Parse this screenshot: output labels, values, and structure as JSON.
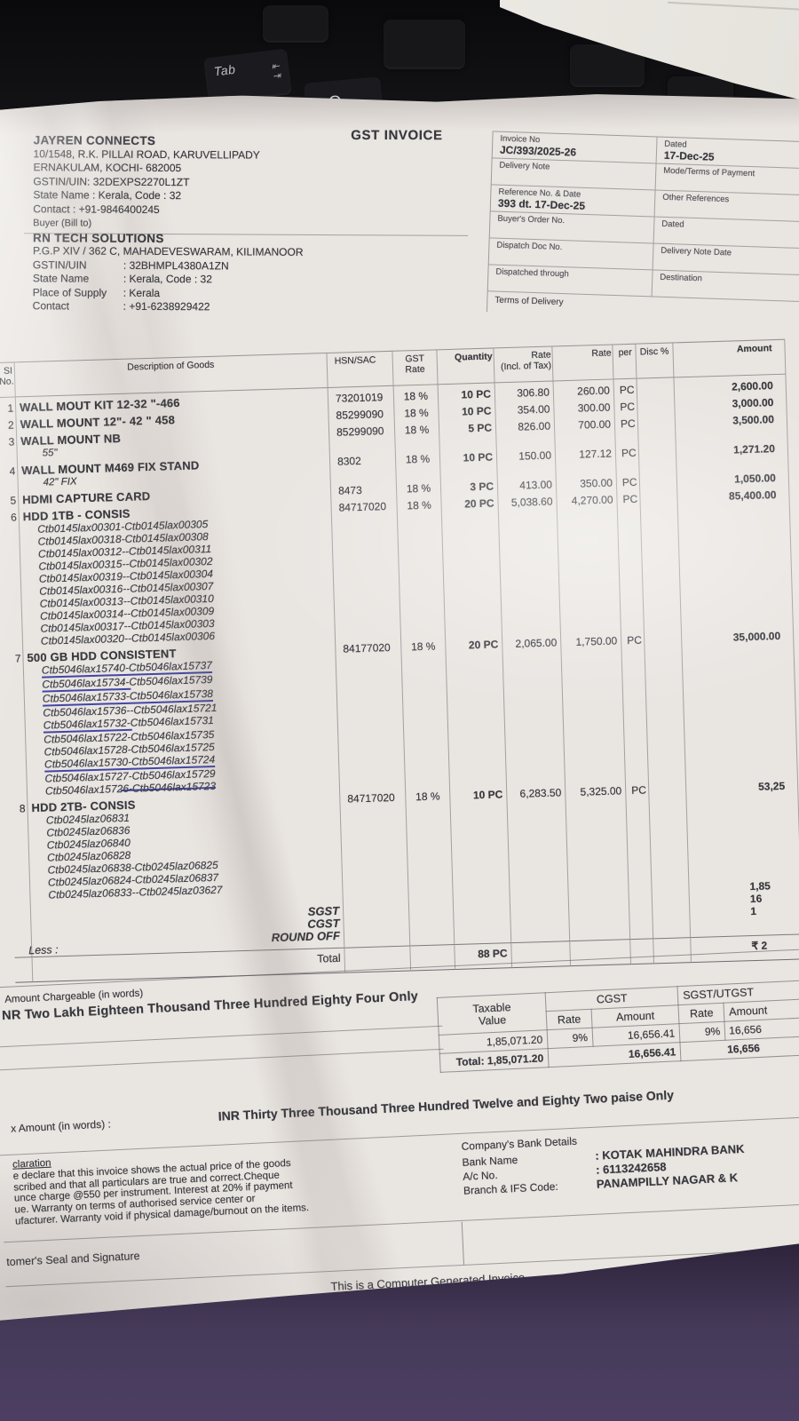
{
  "background": {
    "keys": [
      "Tab",
      "Q"
    ],
    "tab_glyph": "⇤\n⇥"
  },
  "invoice": {
    "title": "GST INVOICE",
    "seller": {
      "name": "JAYREN CONNECTS",
      "lines": [
        "10/1548, R.K. PILLAI ROAD, KARUVELLIPADY",
        "ERNAKULAM, KOCHI- 682005",
        "GSTIN/UIN: 32DEXPS2270L1ZT",
        "State Name : Kerala, Code : 32",
        "Contact : +91-9846400245"
      ],
      "buyer_heading": "Buyer (Bill to)"
    },
    "buyer": {
      "name": "RN TECH SOLUTIONS",
      "address": "P.G.P XIV / 362 C, MAHADEVESWARAM, KILIMANOOR",
      "fields": [
        {
          "label": "GSTIN/UIN",
          "value": ": 32BHMPL4380A1ZN"
        },
        {
          "label": "State Name",
          "value": ": Kerala, Code : 32"
        },
        {
          "label": "Place of Supply",
          "value": ": Kerala"
        },
        {
          "label": "Contact",
          "value": ": +91-6238929422"
        }
      ]
    },
    "meta": {
      "rows": [
        {
          "l1": "Invoice No",
          "v1": "JC/393/2025-26",
          "l2": "Dated",
          "v2": "17-Dec-25"
        },
        {
          "l1": "Delivery Note",
          "v1": "",
          "l2": "Mode/Terms of Payment",
          "v2": ""
        },
        {
          "l1": "Reference No. & Date",
          "v1": "393  dt. 17-Dec-25",
          "l2": "Other References",
          "v2": ""
        },
        {
          "l1": "Buyer's Order No.",
          "v1": "",
          "l2": "Dated",
          "v2": ""
        },
        {
          "l1": "Dispatch Doc No.",
          "v1": "",
          "l2": "Delivery Note Date",
          "v2": ""
        },
        {
          "l1": "Dispatched through",
          "v1": "",
          "l2": "Destination",
          "v2": ""
        }
      ],
      "terms_label": "Terms of Delivery"
    },
    "table": {
      "headers": {
        "sl": "SI|No.",
        "desc": "Description of Goods",
        "hsn": "HSN/SAC",
        "gst": "GST|Rate",
        "qty": "Quantity",
        "rate_incl": "Rate|(Incl. of Tax)",
        "rate": "Rate",
        "per": "per",
        "disc": "Disc %",
        "amount": "Amount"
      },
      "rows": [
        {
          "sl": "1",
          "desc": "WALL MOUT KIT 12-32 \"-466",
          "hsn": "73201019",
          "gst": "18 %",
          "qty": "10 PC",
          "rate_incl": "306.80",
          "rate": "260.00",
          "per": "PC",
          "amount": "2,600.00"
        },
        {
          "sl": "2",
          "desc": "WALL MOUNT 12\"- 42 \" 458",
          "hsn": "85299090",
          "gst": "18 %",
          "qty": "10 PC",
          "rate_incl": "354.00",
          "rate": "300.00",
          "per": "PC",
          "amount": "3,000.00"
        },
        {
          "sl": "3",
          "desc": "WALL MOUNT NB",
          "sub": "55\"",
          "hsn": "85299090",
          "gst": "18 %",
          "qty": "5 PC",
          "rate_incl": "826.00",
          "rate": "700.00",
          "per": "PC",
          "amount": "3,500.00"
        },
        {
          "sl": "4",
          "desc": "WALL MOUNT M469 FIX STAND",
          "sub": "42\" FIX",
          "hsn": "8302",
          "gst": "18 %",
          "qty": "10 PC",
          "rate_incl": "150.00",
          "rate": "127.12",
          "per": "PC",
          "amount": "1,271.20"
        },
        {
          "sl": "5",
          "desc": "HDMI CAPTURE CARD",
          "hsn": "8473",
          "gst": "18 %",
          "qty": "3 PC",
          "rate_incl": "413.00",
          "rate": "350.00",
          "per": "PC",
          "amount": "1,050.00"
        },
        {
          "sl": "6",
          "desc": "HDD 1TB - CONSIS",
          "hsn": "84717020",
          "gst": "18 %",
          "qty": "20 PC",
          "rate_incl": "5,038.60",
          "rate": "4,270.00",
          "per": "PC",
          "amount": "85,400.00",
          "serials": [
            "Ctb0145lax00301-Ctb0145lax00305",
            "Ctb0145lax00318-Ctb0145lax00308",
            "Ctb0145lax00312--Ctb0145lax00311",
            "Ctb0145lax00315--Ctb0145lax00302",
            "Ctb0145lax00319--Ctb0145lax00304",
            "Ctb0145lax00316--Ctb0145lax00307",
            "Ctb0145lax00313--Ctb0145lax00310",
            "Ctb0145lax00314--Ctb0145lax00309",
            "Ctb0145lax00317--Ctb0145lax00303",
            "Ctb0145lax00320--Ctb0145lax00306"
          ]
        },
        {
          "sl": "7",
          "desc": "500 GB HDD CONSISTENT",
          "hsn": "84177020",
          "gst": "18 %",
          "qty": "20 PC",
          "rate_incl": "2,065.00",
          "rate": "1,750.00",
          "per": "PC",
          "amount": "35,000.00",
          "serials": [
            {
              "t": "Ctb5046lax15740-Ctb5046lax15737",
              "pen": "u-full"
            },
            {
              "t": "Ctb5046lax15734-Ctb5046lax15739",
              "pen": "u-first"
            },
            {
              "t": "Ctb5046lax15733-Ctb5046lax15738",
              "pen": "u-full"
            },
            {
              "t": "Ctb5046lax15736--Ctb5046lax15721",
              "pen": ""
            },
            {
              "t": "Ctb5046lax15732-Ctb5046lax15731",
              "pen": "u-first"
            },
            {
              "t": "Ctb5046lax15722-Ctb5046lax15735",
              "pen": ""
            },
            {
              "t": "Ctb5046lax15728-Ctb5046lax15725",
              "pen": ""
            },
            {
              "t": "Ctb5046lax15730-Ctb5046lax15724",
              "pen": "u-full"
            },
            {
              "t": "Ctb5046lax15727-Ctb5046lax15729",
              "pen": ""
            },
            {
              "t": "Ctb5046lax15726-Ctb5046lax15723",
              "pen": "strike2"
            }
          ]
        },
        {
          "sl": "8",
          "desc": "HDD 2TB- CONSIS",
          "hsn": "84717020",
          "gst": "18 %",
          "qty": "10 PC",
          "rate_incl": "6,283.50",
          "rate": "5,325.00",
          "per": "PC",
          "amount": "53,25",
          "serials": [
            "Ctb0245laz06831",
            "Ctb0245laz06836",
            "Ctb0245laz06840",
            "Ctb0245laz06828",
            "Ctb0245laz06838-Ctb0245laz06825",
            "Ctb0245laz06824-Ctb0245laz06837",
            "Ctb0245laz06833--Ctb0245laz03627"
          ]
        }
      ],
      "totals": [
        {
          "label": "",
          "amount": "1,85"
        },
        {
          "label": "SGST",
          "amount": "16"
        },
        {
          "label": "CGST",
          "amount": "1"
        },
        {
          "label": "ROUND OFF",
          "amount": "",
          "left": "Less :"
        }
      ],
      "total_row": {
        "label": "Total",
        "qty": "88 PC",
        "amount": "₹ 2"
      }
    },
    "amount_words": {
      "label": "Amount Chargeable (in words)",
      "text": "NR Two Lakh Eighteen Thousand Three Hundred Eighty Four Only"
    },
    "tax_table": {
      "col_taxable1": "Taxable",
      "col_taxable2": "Value",
      "col_cgst": "CGST",
      "col_sgst": "SGST/UTGST",
      "col_rate1": "Rate",
      "col_amount1": "Amount",
      "col_rate2": "Rate",
      "col_amount2": "Amount",
      "row": {
        "taxable": "1,85,071.20",
        "cgst_rate": "9%",
        "cgst_amount": "16,656.41",
        "sgst_rate": "9%",
        "sgst_amount": "16,656"
      },
      "total": {
        "label": "Total:",
        "taxable": "1,85,071.20",
        "cgst_amount": "16,656.41",
        "sgst_amount": "16,656"
      }
    },
    "tax_words": {
      "label": "x Amount (in words)  :",
      "text": "INR Thirty Three Thousand Three Hundred Twelve and Eighty Two paise Only"
    },
    "declaration": {
      "lines": [
        "claration",
        "e declare that this invoice shows the actual price of the goods",
        "scribed and that all particulars are true and correct.Cheque",
        "unce charge @550 per instrument. Interest at 20% if payment",
        "ue. Warranty on terms of authorised service center or",
        "ufacturer. Warranty void if physical damage/burnout on the items."
      ]
    },
    "bank": {
      "heading": "Company's Bank Details",
      "rows": [
        {
          "label": "Bank Name",
          "value": ":  KOTAK MAHINDRA BANK"
        },
        {
          "label": "A/c No.",
          "value": ":  6113242658"
        },
        {
          "label": "Branch & IFS Code:",
          "value": "PANAMPILLY NAGAR & K"
        }
      ],
      "fragment": "f"
    },
    "seal_text": "tomer's Seal and Signature",
    "footer": "This is a Computer Generated Invoice"
  }
}
